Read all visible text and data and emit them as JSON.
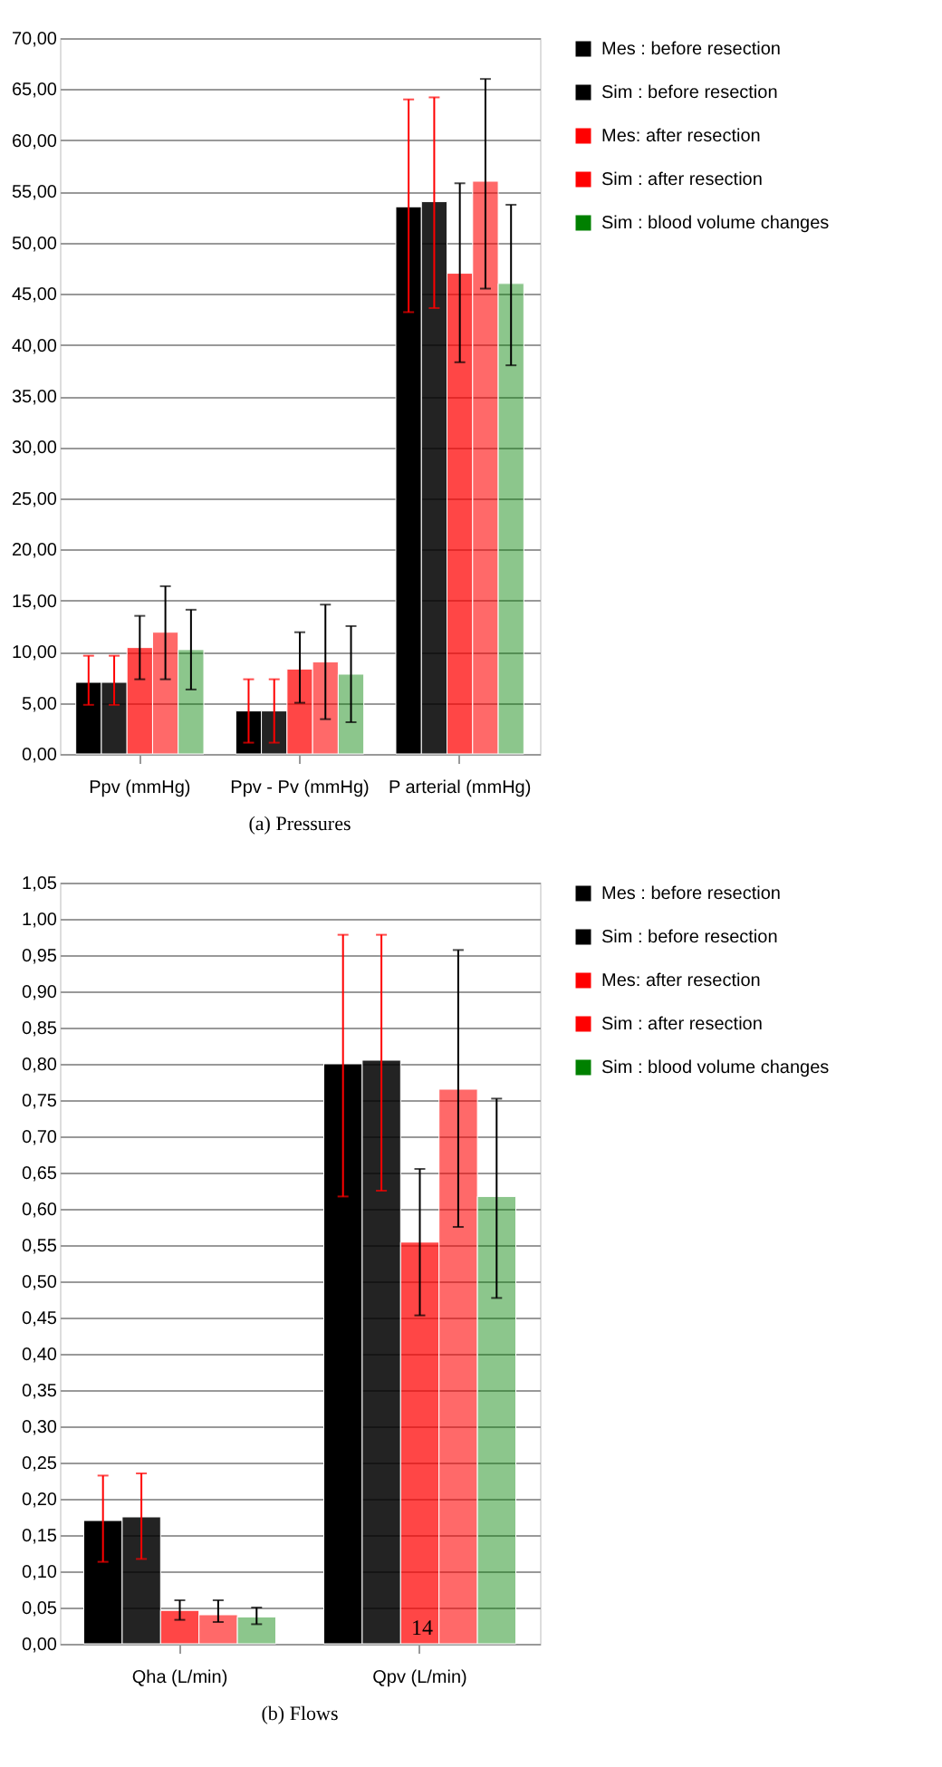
{
  "chart_data": [
    {
      "type": "bar",
      "categories": [
        "Ppv (mmHg)",
        "Ppv - Pv (mmHg)",
        "P arterial (mmHg)"
      ],
      "series": [
        {
          "name": "Mes : before resection",
          "color": "#000000",
          "values": [
            7.0,
            4.2,
            53.5
          ],
          "errors": [
            [
              4.8,
              9.6
            ],
            [
              1.1,
              7.3
            ],
            [
              43.2,
              64.0
            ]
          ]
        },
        {
          "name": "Sim : before resection",
          "color": "#000000",
          "values": [
            7.0,
            4.2,
            54.0
          ],
          "errors": [
            [
              4.8,
              9.6
            ],
            [
              1.1,
              7.3
            ],
            [
              43.6,
              64.2
            ]
          ]
        },
        {
          "name": "Mes: after resection",
          "color": "#ff0000",
          "values": [
            10.4,
            8.3,
            47.0
          ],
          "errors": [
            [
              7.3,
              13.5
            ],
            [
              5.0,
              11.9
            ],
            [
              38.3,
              55.8
            ]
          ]
        },
        {
          "name": "Sim : after resection",
          "color": "#ff0000",
          "values": [
            11.9,
            9.0,
            56.0
          ],
          "errors": [
            [
              7.3,
              16.4
            ],
            [
              3.4,
              14.6
            ],
            [
              45.5,
              66.0
            ]
          ]
        },
        {
          "name": "Sim : blood volume changes",
          "color": "#008000",
          "values": [
            10.2,
            7.8,
            46.0
          ],
          "errors": [
            [
              6.3,
              14.1
            ],
            [
              3.1,
              12.5
            ],
            [
              38.0,
              53.7
            ]
          ]
        }
      ],
      "ylim": [
        0,
        70
      ],
      "yticks": [
        {
          "value": 0,
          "label": "0,00"
        },
        {
          "value": 5,
          "label": "5,00"
        },
        {
          "value": 10,
          "label": "10,00"
        },
        {
          "value": 15,
          "label": "15,00"
        },
        {
          "value": 20,
          "label": "20,00"
        },
        {
          "value": 25,
          "label": "25,00"
        },
        {
          "value": 30,
          "label": "30,00"
        },
        {
          "value": 35,
          "label": "35,00"
        },
        {
          "value": 40,
          "label": "40,00"
        },
        {
          "value": 45,
          "label": "45,00"
        },
        {
          "value": 50,
          "label": "50,00"
        },
        {
          "value": 55,
          "label": "55,00"
        },
        {
          "value": 60,
          "label": "60,00"
        },
        {
          "value": 65,
          "label": "65,00"
        },
        {
          "value": 70,
          "label": "70,00"
        }
      ],
      "grid": "y",
      "legend": "right",
      "annotations": [
        "(a) Pressures"
      ]
    },
    {
      "type": "bar",
      "categories": [
        "Qha (L/min)",
        "Qpv (L/min)"
      ],
      "series": [
        {
          "name": "Mes : before resection",
          "color": "#000000",
          "values": [
            0.17,
            0.8
          ],
          "errors": [
            [
              0.113,
              0.232
            ],
            [
              0.617,
              0.978
            ]
          ]
        },
        {
          "name": "Sim : before resection",
          "color": "#000000",
          "values": [
            0.175,
            0.805
          ],
          "errors": [
            [
              0.117,
              0.235
            ],
            [
              0.625,
              0.978
            ]
          ]
        },
        {
          "name": "Mes: after resection",
          "color": "#ff0000",
          "values": [
            0.046,
            0.554
          ],
          "errors": [
            [
              0.033,
              0.06
            ],
            [
              0.453,
              0.655
            ]
          ]
        },
        {
          "name": "Sim : after resection",
          "color": "#ff0000",
          "values": [
            0.04,
            0.765
          ],
          "errors": [
            [
              0.03,
              0.06
            ],
            [
              0.575,
              0.957
            ]
          ]
        },
        {
          "name": "Sim : blood volume changes",
          "color": "#008000",
          "values": [
            0.037,
            0.617
          ],
          "errors": [
            [
              0.027,
              0.05
            ],
            [
              0.477,
              0.752
            ]
          ]
        }
      ],
      "ylim": [
        0,
        1.05
      ],
      "yticks": [
        {
          "value": 0,
          "label": "0,00"
        },
        {
          "value": 0.05,
          "label": "0,05"
        },
        {
          "value": 0.1,
          "label": "0,10"
        },
        {
          "value": 0.15,
          "label": "0,15"
        },
        {
          "value": 0.2,
          "label": "0,20"
        },
        {
          "value": 0.25,
          "label": "0,25"
        },
        {
          "value": 0.3,
          "label": "0,30"
        },
        {
          "value": 0.35,
          "label": "0,35"
        },
        {
          "value": 0.4,
          "label": "0,40"
        },
        {
          "value": 0.45,
          "label": "0,45"
        },
        {
          "value": 0.5,
          "label": "0,50"
        },
        {
          "value": 0.55,
          "label": "0,55"
        },
        {
          "value": 0.6,
          "label": "0,60"
        },
        {
          "value": 0.65,
          "label": "0,65"
        },
        {
          "value": 0.7,
          "label": "0,70"
        },
        {
          "value": 0.75,
          "label": "0,75"
        },
        {
          "value": 0.8,
          "label": "0,80"
        },
        {
          "value": 0.85,
          "label": "0,85"
        },
        {
          "value": 0.9,
          "label": "0,90"
        },
        {
          "value": 0.95,
          "label": "0,95"
        },
        {
          "value": 1.0,
          "label": "1,00"
        },
        {
          "value": 1.05,
          "label": "1,05"
        }
      ],
      "grid": "y",
      "legend": "right",
      "annotations": [
        "(b) Flows",
        "14"
      ]
    }
  ]
}
